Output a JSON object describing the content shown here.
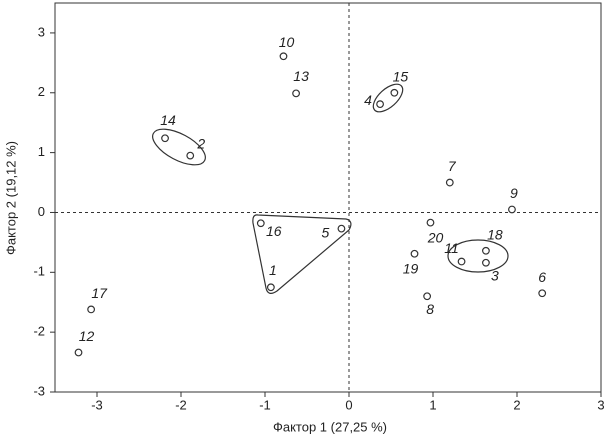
{
  "chart_data": {
    "type": "scatter",
    "x_label": "Фактор 1 (27,25 %)",
    "y_label": "Фактор 2 (19,12 %)",
    "labels": [
      "10",
      "13",
      "14",
      "2",
      "4",
      "15",
      "7",
      "9",
      "20",
      "16",
      "5",
      "19",
      "11",
      "18",
      "3",
      "6",
      "8",
      "1",
      "17",
      "12"
    ],
    "x": [
      -0.78,
      -0.63,
      -2.19,
      -1.89,
      0.37,
      0.54,
      1.2,
      1.94,
      0.97,
      -1.05,
      -0.09,
      0.78,
      1.34,
      1.63,
      1.63,
      2.3,
      0.93,
      -0.93,
      -3.07,
      -3.22
    ],
    "values": [
      2.61,
      1.99,
      1.24,
      0.95,
      1.81,
      2.0,
      0.5,
      0.05,
      -0.17,
      -0.18,
      -0.27,
      -0.69,
      -0.82,
      -0.64,
      -0.84,
      -1.35,
      -1.4,
      -1.25,
      -1.62,
      -2.34
    ],
    "xlim": [
      -3.5,
      3
    ],
    "ylim": [
      -3,
      3.5
    ],
    "xticks": [
      -3,
      -2,
      -1,
      0,
      1,
      2,
      3
    ],
    "yticks": [
      -3,
      -2,
      -1,
      0,
      1,
      2,
      3
    ],
    "color": "#333333"
  }
}
